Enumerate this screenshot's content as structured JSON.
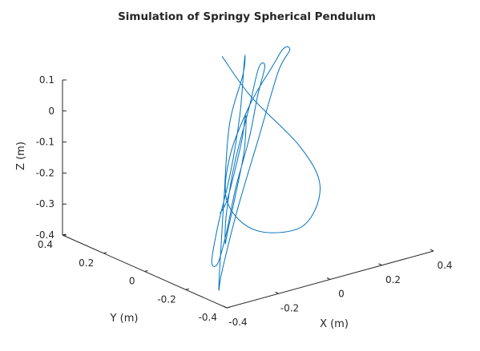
{
  "chart_data": {
    "type": "line",
    "projection": "3d",
    "title": "Simulation of Springy Spherical Pendulum",
    "xlabel": "X (m)",
    "ylabel": "Y (m)",
    "zlabel": "Z (m)",
    "xlim": [
      -0.4,
      0.4
    ],
    "ylim": [
      -0.4,
      0.4
    ],
    "zlim": [
      -0.4,
      0.1
    ],
    "xticks": [
      -0.4,
      -0.2,
      0,
      0.2,
      0.4
    ],
    "xtick_labels": [
      "-0.4",
      "-0.2",
      "0",
      "0.2",
      "0.4"
    ],
    "yticks": [
      -0.4,
      -0.2,
      0,
      0.2,
      0.4
    ],
    "ytick_labels": [
      "-0.4",
      "-0.2",
      "0",
      "0.2",
      "0.4"
    ],
    "zticks": [
      -0.4,
      -0.3,
      -0.2,
      -0.1,
      0,
      0.1
    ],
    "ztick_labels": [
      "-0.4",
      "-0.3",
      "-0.2",
      "-0.1",
      "0",
      "0.1"
    ],
    "grid": false,
    "legend": "none",
    "series_color": "#0072BD",
    "series": [
      {
        "projected_path": [
          [
            -0.06,
            0.05,
            0.2
          ],
          [
            0.06,
            0.06,
            0.04
          ],
          [
            0.14,
            -0.08,
            -0.1
          ],
          [
            0.12,
            -0.2,
            -0.19
          ],
          [
            0.02,
            -0.24,
            -0.28
          ],
          [
            -0.08,
            -0.14,
            -0.3
          ],
          [
            -0.08,
            0.0,
            -0.25
          ],
          [
            0.01,
            0.1,
            -0.15
          ],
          [
            0.12,
            0.14,
            -0.02
          ],
          [
            0.22,
            0.16,
            0.07
          ],
          [
            0.28,
            0.18,
            0.11
          ],
          [
            0.32,
            0.2,
            0.09
          ],
          [
            0.26,
            0.18,
            0.04
          ],
          [
            0.12,
            0.1,
            -0.12
          ],
          [
            -0.04,
            0.0,
            -0.28
          ],
          [
            -0.18,
            -0.1,
            -0.42
          ],
          [
            -0.24,
            -0.16,
            -0.45
          ],
          [
            -0.22,
            -0.14,
            -0.38
          ],
          [
            -0.14,
            -0.06,
            -0.2
          ],
          [
            -0.04,
            0.04,
            -0.02
          ],
          [
            0.06,
            0.1,
            0.1
          ],
          [
            0.1,
            0.14,
            0.14
          ],
          [
            0.08,
            0.12,
            0.12
          ],
          [
            0.0,
            0.04,
            0.0
          ],
          [
            -0.1,
            -0.04,
            -0.14
          ],
          [
            -0.18,
            -0.08,
            -0.28
          ],
          [
            -0.22,
            -0.1,
            -0.38
          ],
          [
            -0.18,
            -0.08,
            -0.4
          ],
          [
            -0.1,
            -0.02,
            -0.34
          ],
          [
            0.0,
            0.06,
            -0.24
          ],
          [
            0.1,
            0.12,
            -0.12
          ],
          [
            0.18,
            0.18,
            -0.02
          ],
          [
            0.24,
            0.22,
            0.05
          ],
          [
            0.2,
            0.2,
            0.06
          ],
          [
            0.1,
            0.12,
            -0.02
          ],
          [
            -0.02,
            0.04,
            -0.15
          ],
          [
            -0.1,
            -0.02,
            -0.28
          ],
          [
            -0.12,
            -0.04,
            -0.36
          ],
          [
            -0.08,
            0.0,
            -0.35
          ],
          [
            0.0,
            0.06,
            -0.26
          ],
          [
            0.08,
            0.12,
            -0.16
          ],
          [
            0.12,
            0.16,
            -0.08
          ],
          [
            0.1,
            0.14,
            -0.06
          ],
          [
            0.04,
            0.08,
            -0.1
          ],
          [
            -0.04,
            0.02,
            -0.18
          ],
          [
            -0.1,
            -0.02,
            -0.24
          ],
          [
            -0.14,
            -0.04,
            -0.26
          ]
        ]
      }
    ]
  }
}
